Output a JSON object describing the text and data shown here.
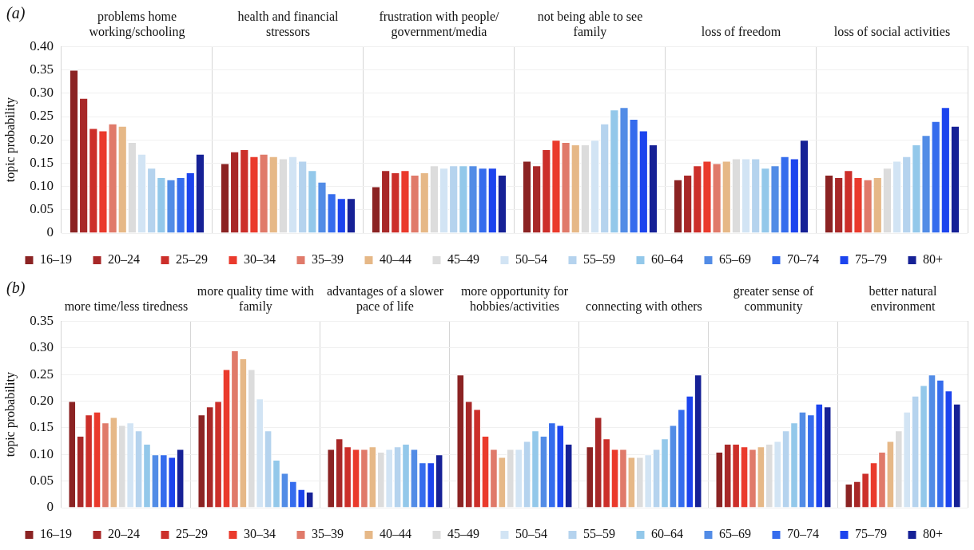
{
  "chart_data": [
    {
      "type": "bar",
      "annotations": [
        "(a)"
      ],
      "ylabel": "topic probability",
      "categories": [
        "problems home working/schooling",
        "health and financial stressors",
        "frustration with people/government/media",
        "not being able to see family",
        "loss of freedom",
        "loss of social activities"
      ],
      "ylim": [
        0,
        0.4
      ],
      "yticks": [
        {
          "value": 0,
          "label": "0"
        },
        {
          "value": 0.05,
          "label": "0.05"
        },
        {
          "value": 0.1,
          "label": "0.10"
        },
        {
          "value": 0.15,
          "label": "0.15"
        },
        {
          "value": 0.2,
          "label": "0.20"
        },
        {
          "value": 0.25,
          "label": "0.25"
        },
        {
          "value": 0.3,
          "label": "0.30"
        },
        {
          "value": 0.35,
          "label": "0.35"
        },
        {
          "value": 0.4,
          "label": "0.40"
        }
      ],
      "grid": true,
      "legend": "bottom",
      "series": [
        {
          "name": "16–19",
          "color": "#8b2323",
          "values": [
            0.35,
            0.15,
            0.1,
            0.155,
            0.115,
            0.125
          ]
        },
        {
          "name": "20–24",
          "color": "#a82828",
          "values": [
            0.29,
            0.175,
            0.135,
            0.145,
            0.125,
            0.12
          ]
        },
        {
          "name": "25–29",
          "color": "#cc2f2a",
          "values": [
            0.225,
            0.18,
            0.13,
            0.18,
            0.145,
            0.135
          ]
        },
        {
          "name": "30–34",
          "color": "#ea3a2c",
          "values": [
            0.22,
            0.165,
            0.135,
            0.2,
            0.155,
            0.12
          ]
        },
        {
          "name": "35–39",
          "color": "#e07a6a",
          "values": [
            0.235,
            0.17,
            0.125,
            0.195,
            0.15,
            0.115
          ]
        },
        {
          "name": "40–44",
          "color": "#e6b887",
          "values": [
            0.23,
            0.165,
            0.13,
            0.19,
            0.155,
            0.12
          ]
        },
        {
          "name": "45–49",
          "color": "#dcdcdc",
          "values": [
            0.195,
            0.16,
            0.145,
            0.19,
            0.16,
            0.14
          ]
        },
        {
          "name": "50–54",
          "color": "#d2e4f4",
          "values": [
            0.17,
            0.165,
            0.14,
            0.2,
            0.16,
            0.155
          ]
        },
        {
          "name": "55–59",
          "color": "#b5d3ee",
          "values": [
            0.14,
            0.155,
            0.145,
            0.235,
            0.16,
            0.165
          ]
        },
        {
          "name": "60–64",
          "color": "#93c8ea",
          "values": [
            0.12,
            0.135,
            0.145,
            0.265,
            0.14,
            0.19
          ]
        },
        {
          "name": "65–69",
          "color": "#528ce6",
          "values": [
            0.115,
            0.11,
            0.145,
            0.27,
            0.145,
            0.21
          ]
        },
        {
          "name": "70–74",
          "color": "#356ced",
          "values": [
            0.12,
            0.085,
            0.14,
            0.245,
            0.165,
            0.24
          ]
        },
        {
          "name": "75–79",
          "color": "#1c44ee",
          "values": [
            0.13,
            0.075,
            0.14,
            0.22,
            0.16,
            0.27
          ]
        },
        {
          "name": "80+",
          "color": "#162196",
          "values": [
            0.17,
            0.075,
            0.125,
            0.19,
            0.2,
            0.23
          ]
        }
      ]
    },
    {
      "type": "bar",
      "annotations": [
        "(b)"
      ],
      "ylabel": "topic probability",
      "categories": [
        "more time/less tiredness",
        "more quality time with family",
        "advantages of a slower pace of life",
        "more opportunity for hobbies/activities",
        "connecting with others",
        "greater sense of community",
        "better natural environment"
      ],
      "ylim": [
        0,
        0.35
      ],
      "yticks": [
        {
          "value": 0,
          "label": "0"
        },
        {
          "value": 0.05,
          "label": "0.05"
        },
        {
          "value": 0.1,
          "label": "0.10"
        },
        {
          "value": 0.15,
          "label": "0.15"
        },
        {
          "value": 0.2,
          "label": "0.20"
        },
        {
          "value": 0.25,
          "label": "0.25"
        },
        {
          "value": 0.3,
          "label": "0.30"
        },
        {
          "value": 0.35,
          "label": "0.35"
        }
      ],
      "grid": true,
      "legend": "bottom",
      "series": [
        {
          "name": "16–19",
          "color": "#8b2323",
          "values": [
            0.2,
            0.175,
            0.11,
            0.25,
            0.115,
            0.105,
            0.045
          ]
        },
        {
          "name": "20–24",
          "color": "#a82828",
          "values": [
            0.135,
            0.19,
            0.13,
            0.2,
            0.17,
            0.12,
            0.05
          ]
        },
        {
          "name": "25–29",
          "color": "#cc2f2a",
          "values": [
            0.175,
            0.2,
            0.115,
            0.185,
            0.13,
            0.12,
            0.065
          ]
        },
        {
          "name": "30–34",
          "color": "#ea3a2c",
          "values": [
            0.18,
            0.26,
            0.11,
            0.135,
            0.11,
            0.115,
            0.085
          ]
        },
        {
          "name": "35–39",
          "color": "#e07a6a",
          "values": [
            0.16,
            0.295,
            0.11,
            0.11,
            0.11,
            0.11,
            0.105
          ]
        },
        {
          "name": "40–44",
          "color": "#e6b887",
          "values": [
            0.17,
            0.28,
            0.115,
            0.095,
            0.095,
            0.115,
            0.125
          ]
        },
        {
          "name": "45–49",
          "color": "#dcdcdc",
          "values": [
            0.155,
            0.26,
            0.105,
            0.11,
            0.095,
            0.12,
            0.145
          ]
        },
        {
          "name": "50–54",
          "color": "#d2e4f4",
          "values": [
            0.16,
            0.205,
            0.11,
            0.11,
            0.1,
            0.125,
            0.18
          ]
        },
        {
          "name": "55–59",
          "color": "#b5d3ee",
          "values": [
            0.145,
            0.145,
            0.115,
            0.125,
            0.11,
            0.145,
            0.21
          ]
        },
        {
          "name": "60–64",
          "color": "#93c8ea",
          "values": [
            0.12,
            0.09,
            0.12,
            0.145,
            0.13,
            0.16,
            0.23
          ]
        },
        {
          "name": "65–69",
          "color": "#528ce6",
          "values": [
            0.1,
            0.065,
            0.11,
            0.135,
            0.155,
            0.18,
            0.25
          ]
        },
        {
          "name": "70–74",
          "color": "#356ced",
          "values": [
            0.1,
            0.05,
            0.085,
            0.16,
            0.185,
            0.175,
            0.24
          ]
        },
        {
          "name": "75–79",
          "color": "#1c44ee",
          "values": [
            0.095,
            0.035,
            0.085,
            0.155,
            0.21,
            0.195,
            0.22
          ]
        },
        {
          "name": "80+",
          "color": "#162196",
          "values": [
            0.11,
            0.03,
            0.1,
            0.12,
            0.25,
            0.19,
            0.195
          ]
        }
      ]
    }
  ]
}
